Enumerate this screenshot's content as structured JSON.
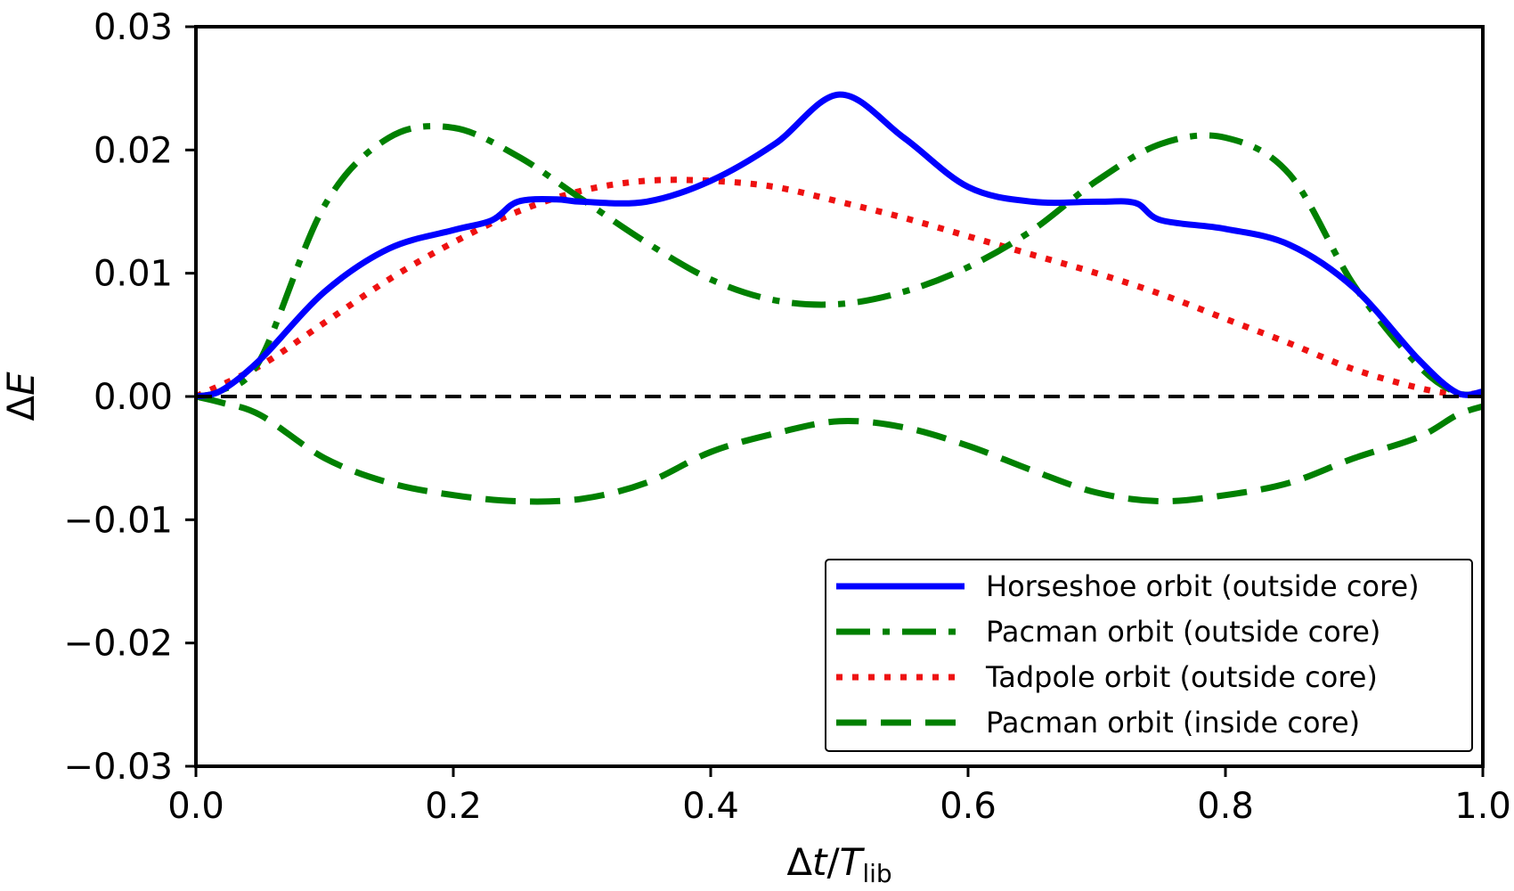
{
  "chart_data": {
    "type": "line",
    "title": "",
    "xlabel": {
      "prefix": "Δ",
      "var": "t",
      "slash": "/",
      "var2": "T",
      "sub": "lib"
    },
    "ylabel": {
      "prefix": "Δ",
      "var": "E"
    },
    "xlim": [
      0.0,
      1.0
    ],
    "ylim": [
      -0.03,
      0.03
    ],
    "xticks": [
      0.0,
      0.2,
      0.4,
      0.6,
      0.8,
      1.0
    ],
    "xtick_labels": [
      "0.0",
      "0.2",
      "0.4",
      "0.6",
      "0.8",
      "1.0"
    ],
    "yticks": [
      0.03,
      0.02,
      0.01,
      0.0,
      -0.01,
      -0.02,
      -0.03
    ],
    "ytick_labels": [
      "0.03",
      "0.02",
      "0.01",
      "0.00",
      "−0.01",
      "−0.02",
      "−0.03"
    ],
    "grid": false,
    "legend_position": "bottom-right",
    "zero_line": {
      "y": 0.0,
      "color": "#000000",
      "style": "dashed"
    },
    "series": [
      {
        "name": "Horseshoe orbit (outside core)",
        "color": "#0000ff",
        "style": "solid",
        "x": [
          0.0,
          0.02,
          0.05,
          0.1,
          0.15,
          0.2,
          0.23,
          0.25,
          0.28,
          0.3,
          0.35,
          0.4,
          0.45,
          0.5,
          0.55,
          0.6,
          0.65,
          0.7,
          0.73,
          0.75,
          0.8,
          0.85,
          0.9,
          0.95,
          0.98,
          1.0
        ],
        "y": [
          0.0,
          0.0005,
          0.003,
          0.0085,
          0.012,
          0.0135,
          0.0143,
          0.0158,
          0.016,
          0.0158,
          0.0158,
          0.0175,
          0.0205,
          0.0245,
          0.021,
          0.017,
          0.0158,
          0.0158,
          0.0157,
          0.0143,
          0.0136,
          0.0123,
          0.0088,
          0.003,
          0.0003,
          0.0004
        ]
      },
      {
        "name": "Pacman orbit (outside core)",
        "color": "#008000",
        "style": "dashdot",
        "x": [
          0.0,
          0.02,
          0.05,
          0.1,
          0.15,
          0.2,
          0.25,
          0.3,
          0.35,
          0.4,
          0.45,
          0.5,
          0.55,
          0.6,
          0.65,
          0.7,
          0.75,
          0.8,
          0.85,
          0.9,
          0.95,
          0.98,
          1.0
        ],
        "y": [
          0.0,
          0.0005,
          0.003,
          0.0155,
          0.021,
          0.0218,
          0.0195,
          0.016,
          0.0125,
          0.0095,
          0.0078,
          0.0075,
          0.0085,
          0.0105,
          0.0135,
          0.0175,
          0.0205,
          0.021,
          0.018,
          0.009,
          0.0025,
          0.0003,
          0.0003
        ]
      },
      {
        "name": "Tadpole orbit (outside core)",
        "color": "#ee1111",
        "style": "dotted",
        "x": [
          0.0,
          0.05,
          0.1,
          0.15,
          0.2,
          0.25,
          0.3,
          0.35,
          0.4,
          0.45,
          0.5,
          0.55,
          0.6,
          0.65,
          0.7,
          0.75,
          0.8,
          0.85,
          0.9,
          0.95,
          0.98,
          1.0
        ],
        "y": [
          0.0,
          0.0025,
          0.006,
          0.0095,
          0.0125,
          0.015,
          0.0167,
          0.0175,
          0.0175,
          0.017,
          0.0158,
          0.0145,
          0.013,
          0.0115,
          0.01,
          0.0083,
          0.0063,
          0.0043,
          0.0022,
          0.0007,
          0.0002,
          0.0003
        ]
      },
      {
        "name": "Pacman orbit (inside core)",
        "color": "#008000",
        "style": "dashed",
        "x": [
          0.0,
          0.02,
          0.05,
          0.1,
          0.15,
          0.2,
          0.25,
          0.3,
          0.35,
          0.4,
          0.45,
          0.5,
          0.55,
          0.6,
          0.65,
          0.7,
          0.75,
          0.8,
          0.85,
          0.9,
          0.95,
          0.98,
          1.0
        ],
        "y": [
          0.0,
          -0.0005,
          -0.0015,
          -0.005,
          -0.007,
          -0.008,
          -0.0085,
          -0.0083,
          -0.007,
          -0.0045,
          -0.003,
          -0.002,
          -0.0025,
          -0.004,
          -0.006,
          -0.0078,
          -0.0085,
          -0.008,
          -0.007,
          -0.005,
          -0.0033,
          -0.0015,
          -0.0008
        ]
      }
    ]
  }
}
